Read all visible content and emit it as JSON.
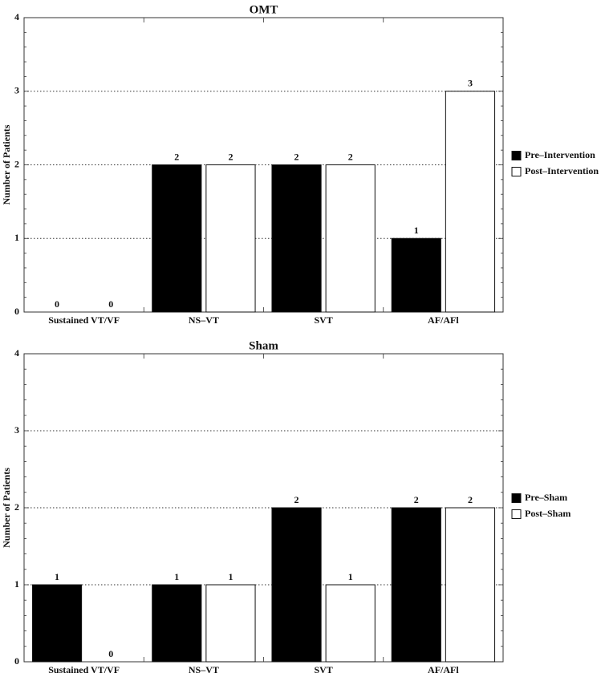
{
  "chart_data": [
    {
      "type": "bar",
      "title": "OMT",
      "xlabel": "",
      "ylabel": "Number of Patients",
      "categories": [
        "Sustained VT/VF",
        "NS-VT",
        "SVT",
        "AF/AFl"
      ],
      "series": [
        {
          "name": "Pre-Intervention",
          "values": [
            0,
            2,
            2,
            1
          ],
          "color": "#000000"
        },
        {
          "name": "Post-Intervention",
          "values": [
            0,
            2,
            2,
            3
          ],
          "color": "#ffffff"
        }
      ],
      "ylim": [
        0,
        4
      ],
      "yticks": [
        0,
        1,
        2,
        3,
        4
      ],
      "grid": "horizontal dotted",
      "legend_placement": "right"
    },
    {
      "type": "bar",
      "title": "Sham",
      "xlabel": "",
      "ylabel": "Number of Patients",
      "categories": [
        "Sustained VT/VF",
        "NS-VT",
        "SVT",
        "AF/AFl"
      ],
      "series": [
        {
          "name": "Pre-Sham",
          "values": [
            1,
            1,
            2,
            2
          ],
          "color": "#000000"
        },
        {
          "name": "Post-Sham",
          "values": [
            0,
            1,
            1,
            2
          ],
          "color": "#ffffff"
        }
      ],
      "ylim": [
        0,
        4
      ],
      "yticks": [
        0,
        1,
        2,
        3,
        4
      ],
      "grid": "horizontal dotted",
      "legend_placement": "right"
    }
  ]
}
